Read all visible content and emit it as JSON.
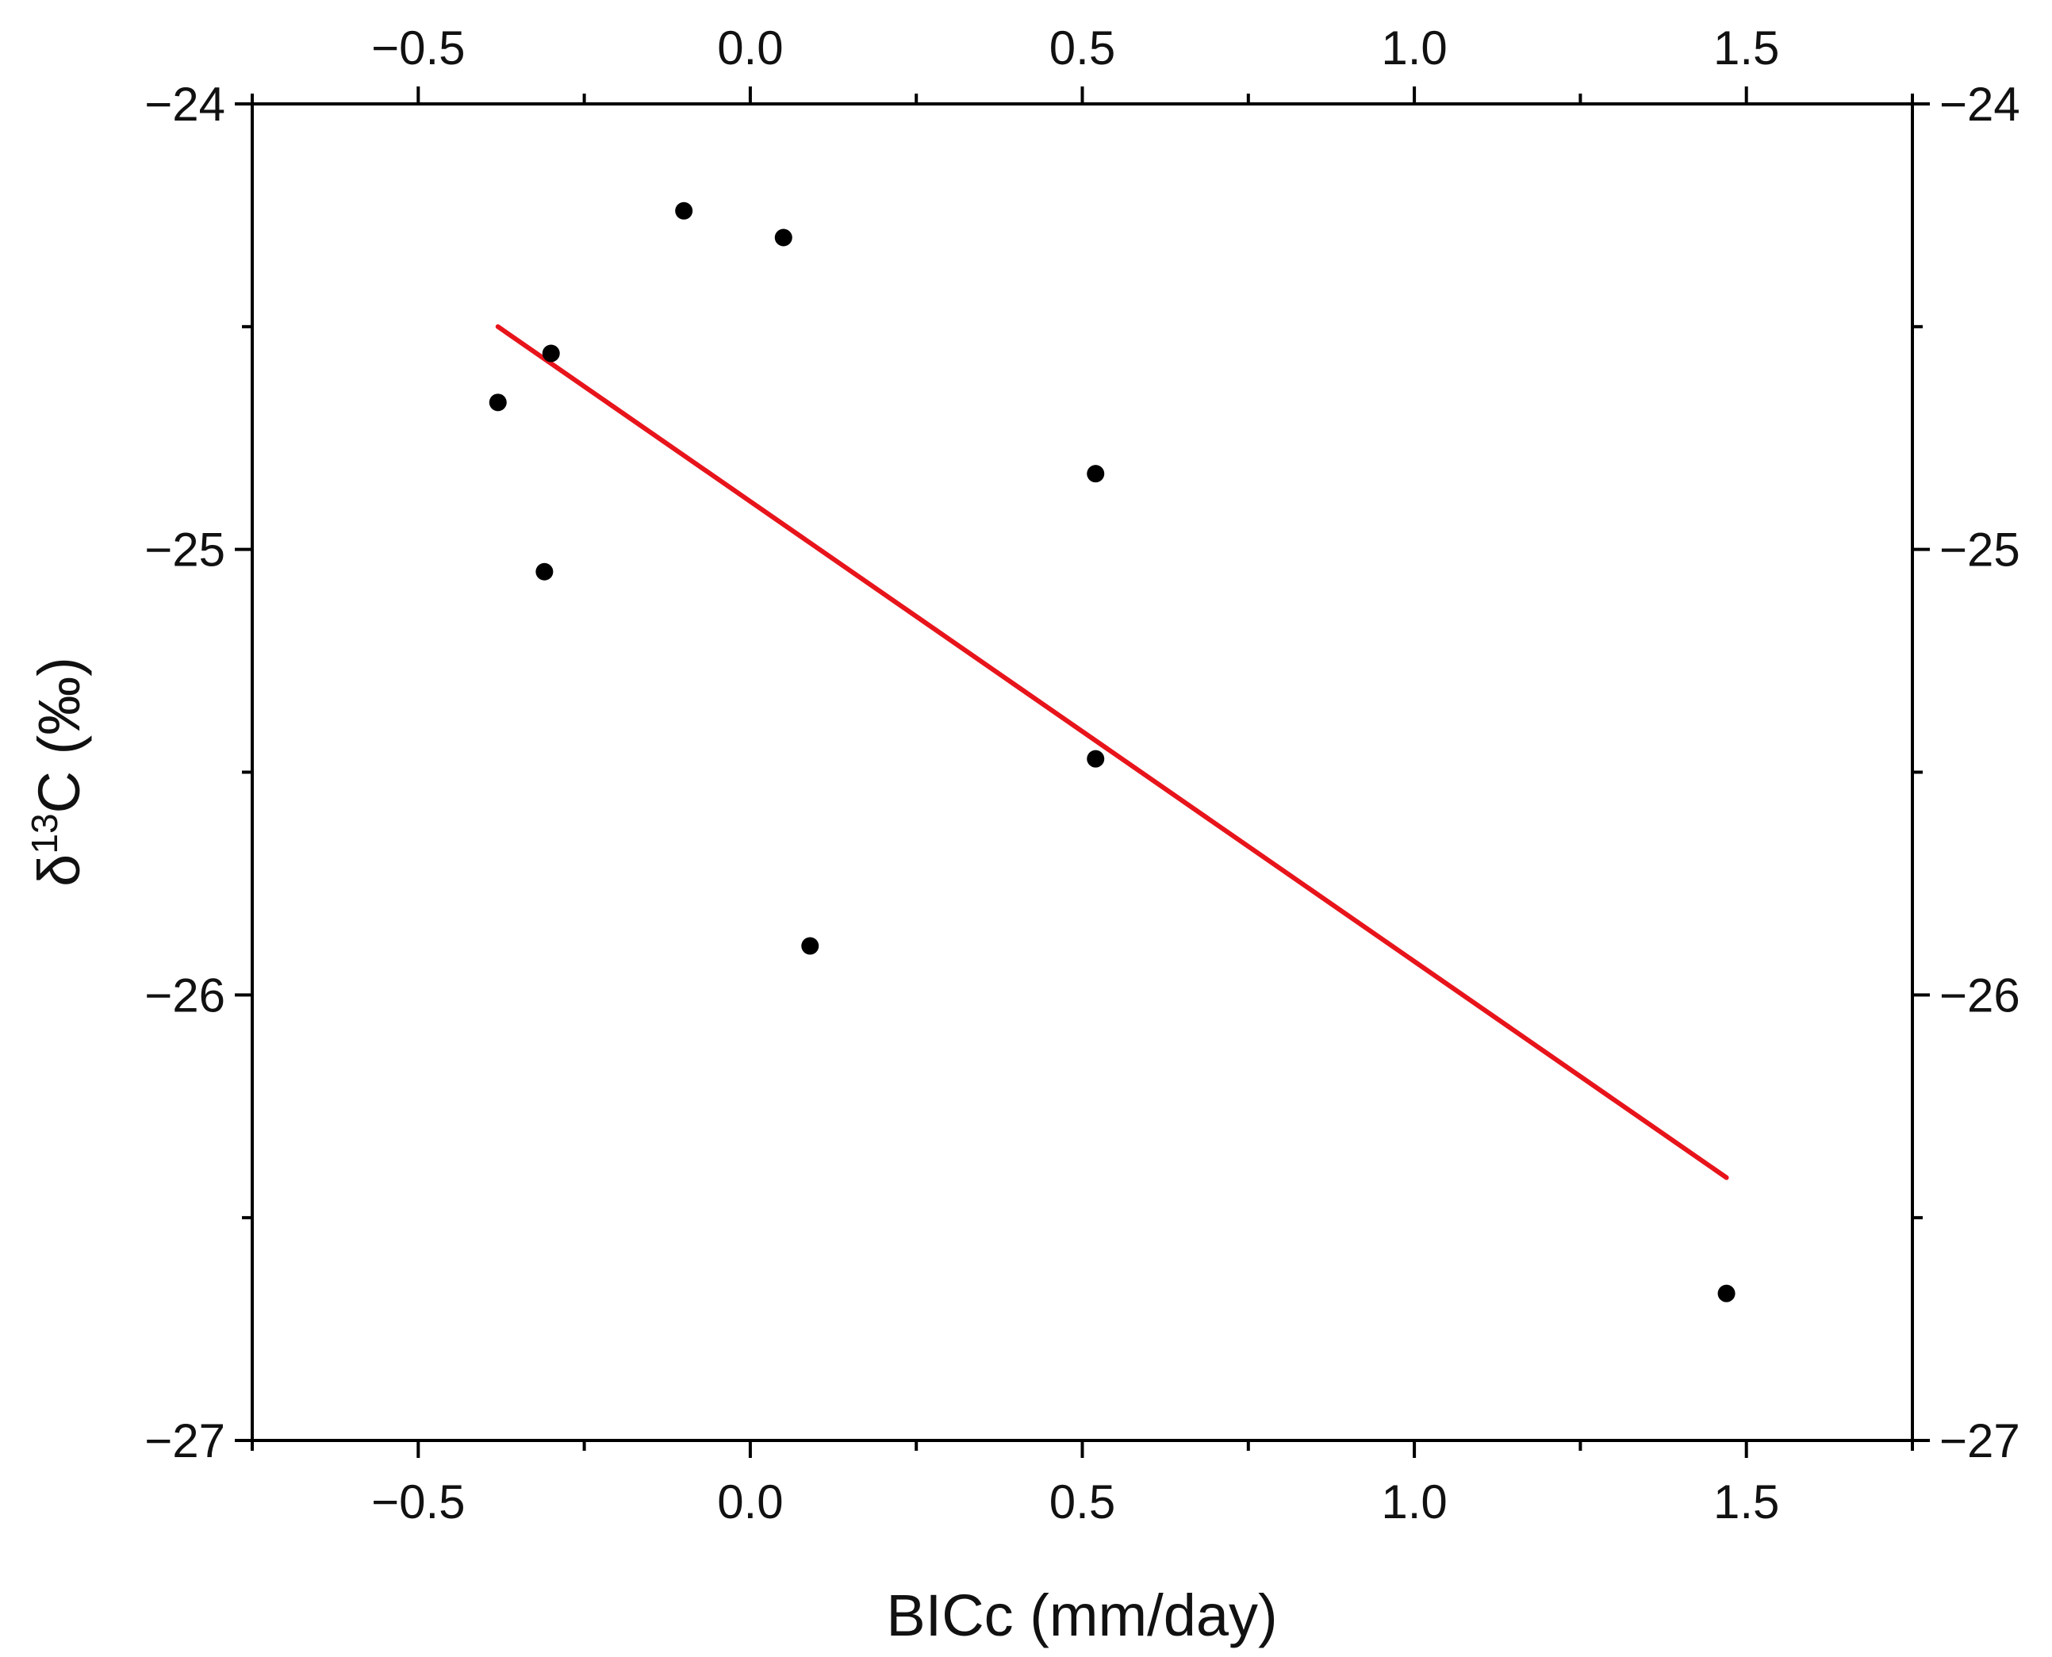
{
  "chart_data": {
    "type": "scatter",
    "xlabel": "BICc (mm/day)",
    "ylabel": {
      "prefix": "δ",
      "superscript": "13",
      "suffix": "C (‰)"
    },
    "xlim": [
      -0.75,
      1.75
    ],
    "ylim": [
      -27,
      -24
    ],
    "x_ticks": [
      -0.5,
      0.0,
      0.5,
      1.0,
      1.5
    ],
    "x_tick_labels": [
      "−0.5",
      "0.0",
      "0.5",
      "1.0",
      "1.5"
    ],
    "x_minor_ticks": [
      -0.75,
      -0.25,
      0.25,
      0.75,
      1.25,
      1.75
    ],
    "y_ticks": [
      -27,
      -26,
      -25,
      -24
    ],
    "y_tick_labels": [
      "−27",
      "−26",
      "−25",
      "−24"
    ],
    "y_minor_ticks": [
      -26.5,
      -25.5,
      -24.5
    ],
    "mirror_axes": true,
    "grid": false,
    "points": [
      {
        "x": -0.38,
        "y": -24.67
      },
      {
        "x": -0.3,
        "y": -24.56
      },
      {
        "x": -0.31,
        "y": -25.05
      },
      {
        "x": -0.1,
        "y": -24.24
      },
      {
        "x": 0.05,
        "y": -24.3
      },
      {
        "x": 0.09,
        "y": -25.89
      },
      {
        "x": 0.52,
        "y": -24.83
      },
      {
        "x": 0.52,
        "y": -25.47
      },
      {
        "x": 1.47,
        "y": -26.67
      }
    ],
    "fit_line": {
      "x": [
        -0.38,
        1.47
      ],
      "y": [
        -24.5,
        -26.41
      ]
    },
    "colors": {
      "points": "#000000",
      "fit_line": "#e8141b",
      "axes": "#000000"
    }
  }
}
